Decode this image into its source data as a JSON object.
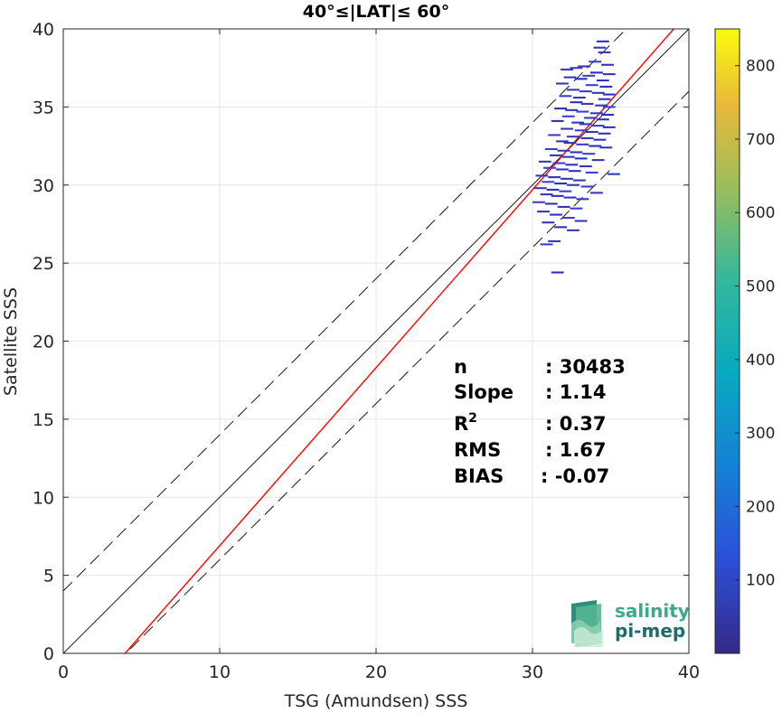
{
  "chart_data": {
    "type": "scatter",
    "title": "40°≤|LAT|≤ 60°",
    "xlabel": "TSG (Amundsen) SSS",
    "ylabel": "Satellite SSS",
    "xlim": [
      0,
      40
    ],
    "ylim": [
      0,
      40
    ],
    "xticks": [
      "0",
      "10",
      "20",
      "30",
      "40"
    ],
    "yticks": [
      "0",
      "5",
      "10",
      "15",
      "20",
      "25",
      "30",
      "35",
      "40"
    ],
    "grid": true,
    "colorbar": {
      "range": [
        0,
        850
      ],
      "ticks": [
        "100",
        "200",
        "300",
        "400",
        "500",
        "600",
        "700",
        "800"
      ],
      "colormap": "parula"
    },
    "reference_lines": {
      "identity": {
        "slope": 1,
        "intercept": 0,
        "color": "#000000"
      },
      "upper_dashed": {
        "slope": 1,
        "intercept": 4,
        "color": "#000000"
      },
      "lower_dashed": {
        "slope": 1,
        "intercept": -4,
        "color": "#000000"
      },
      "regression": {
        "slope": 1.14,
        "intercept": -4.5,
        "color": "#ff0000"
      }
    },
    "density_cells": [
      {
        "x": 34.5,
        "y": 39.2
      },
      {
        "x": 34.3,
        "y": 38.8
      },
      {
        "x": 34.6,
        "y": 38.5
      },
      {
        "x": 34.0,
        "y": 37.9
      },
      {
        "x": 34.8,
        "y": 37.7
      },
      {
        "x": 33.3,
        "y": 37.6
      },
      {
        "x": 32.8,
        "y": 37.5
      },
      {
        "x": 32.2,
        "y": 37.4
      },
      {
        "x": 34.1,
        "y": 37.2
      },
      {
        "x": 33.6,
        "y": 37.0
      },
      {
        "x": 34.9,
        "y": 37.1
      },
      {
        "x": 32.4,
        "y": 36.9
      },
      {
        "x": 33.1,
        "y": 36.8
      },
      {
        "x": 34.5,
        "y": 36.7
      },
      {
        "x": 31.9,
        "y": 36.5
      },
      {
        "x": 33.8,
        "y": 36.4
      },
      {
        "x": 34.7,
        "y": 36.3
      },
      {
        "x": 32.6,
        "y": 36.1
      },
      {
        "x": 33.4,
        "y": 36.0
      },
      {
        "x": 34.2,
        "y": 35.9
      },
      {
        "x": 34.9,
        "y": 35.8
      },
      {
        "x": 32.1,
        "y": 35.7
      },
      {
        "x": 33.0,
        "y": 35.6
      },
      {
        "x": 34.6,
        "y": 35.5
      },
      {
        "x": 32.8,
        "y": 35.3
      },
      {
        "x": 33.5,
        "y": 35.2
      },
      {
        "x": 34.4,
        "y": 35.1
      },
      {
        "x": 34.9,
        "y": 35.0
      },
      {
        "x": 31.8,
        "y": 34.9
      },
      {
        "x": 32.5,
        "y": 34.8
      },
      {
        "x": 33.2,
        "y": 34.7
      },
      {
        "x": 34.1,
        "y": 34.6
      },
      {
        "x": 34.8,
        "y": 34.5
      },
      {
        "x": 32.3,
        "y": 34.4
      },
      {
        "x": 33.7,
        "y": 34.3
      },
      {
        "x": 34.5,
        "y": 34.2
      },
      {
        "x": 31.6,
        "y": 34.1
      },
      {
        "x": 32.9,
        "y": 34.0
      },
      {
        "x": 33.4,
        "y": 33.9
      },
      {
        "x": 34.2,
        "y": 33.8
      },
      {
        "x": 34.9,
        "y": 33.7
      },
      {
        "x": 32.2,
        "y": 33.6
      },
      {
        "x": 33.1,
        "y": 33.5
      },
      {
        "x": 33.8,
        "y": 33.4
      },
      {
        "x": 34.6,
        "y": 33.3
      },
      {
        "x": 31.4,
        "y": 33.2
      },
      {
        "x": 32.6,
        "y": 33.1
      },
      {
        "x": 33.5,
        "y": 33.0
      },
      {
        "x": 34.3,
        "y": 32.9
      },
      {
        "x": 31.9,
        "y": 32.8
      },
      {
        "x": 32.4,
        "y": 32.7
      },
      {
        "x": 33.2,
        "y": 32.6
      },
      {
        "x": 34.0,
        "y": 32.5
      },
      {
        "x": 34.7,
        "y": 32.4
      },
      {
        "x": 31.2,
        "y": 32.3
      },
      {
        "x": 32.0,
        "y": 32.2
      },
      {
        "x": 32.8,
        "y": 32.1
      },
      {
        "x": 33.6,
        "y": 32.0
      },
      {
        "x": 31.5,
        "y": 31.9
      },
      {
        "x": 32.3,
        "y": 31.8
      },
      {
        "x": 33.1,
        "y": 31.7
      },
      {
        "x": 34.2,
        "y": 31.6
      },
      {
        "x": 30.8,
        "y": 31.5
      },
      {
        "x": 31.7,
        "y": 31.4
      },
      {
        "x": 32.5,
        "y": 31.3
      },
      {
        "x": 33.4,
        "y": 31.2
      },
      {
        "x": 31.1,
        "y": 31.1
      },
      {
        "x": 31.9,
        "y": 31.0
      },
      {
        "x": 32.7,
        "y": 30.9
      },
      {
        "x": 33.8,
        "y": 30.8
      },
      {
        "x": 35.2,
        "y": 30.7
      },
      {
        "x": 30.6,
        "y": 30.6
      },
      {
        "x": 31.4,
        "y": 30.5
      },
      {
        "x": 32.2,
        "y": 30.4
      },
      {
        "x": 33.0,
        "y": 30.3
      },
      {
        "x": 31.0,
        "y": 30.2
      },
      {
        "x": 31.8,
        "y": 30.1
      },
      {
        "x": 32.6,
        "y": 30.0
      },
      {
        "x": 33.5,
        "y": 29.9
      },
      {
        "x": 30.5,
        "y": 29.8
      },
      {
        "x": 31.3,
        "y": 29.7
      },
      {
        "x": 32.1,
        "y": 29.6
      },
      {
        "x": 34.1,
        "y": 29.5
      },
      {
        "x": 30.9,
        "y": 29.4
      },
      {
        "x": 31.6,
        "y": 29.3
      },
      {
        "x": 32.4,
        "y": 29.2
      },
      {
        "x": 33.2,
        "y": 29.1
      },
      {
        "x": 30.4,
        "y": 28.9
      },
      {
        "x": 31.2,
        "y": 28.8
      },
      {
        "x": 32.0,
        "y": 28.6
      },
      {
        "x": 32.8,
        "y": 28.5
      },
      {
        "x": 30.7,
        "y": 28.3
      },
      {
        "x": 31.5,
        "y": 28.1
      },
      {
        "x": 32.3,
        "y": 27.9
      },
      {
        "x": 33.1,
        "y": 27.7
      },
      {
        "x": 31.0,
        "y": 27.6
      },
      {
        "x": 31.8,
        "y": 27.3
      },
      {
        "x": 32.6,
        "y": 27.1
      },
      {
        "x": 31.4,
        "y": 26.4
      },
      {
        "x": 30.9,
        "y": 26.2
      },
      {
        "x": 31.6,
        "y": 24.4
      }
    ],
    "stats": [
      {
        "label": "n",
        "value": ": 30483"
      },
      {
        "label": "Slope",
        "value": ": 1.14"
      },
      {
        "label": "R",
        "sup": "2",
        "value": ": 0.37"
      },
      {
        "label": "RMS",
        "value": ": 1.67"
      },
      {
        "label": "BIAS",
        "value": ": -0.07"
      }
    ],
    "logo": {
      "line1": "salinity",
      "line2": "pi-mep"
    }
  }
}
